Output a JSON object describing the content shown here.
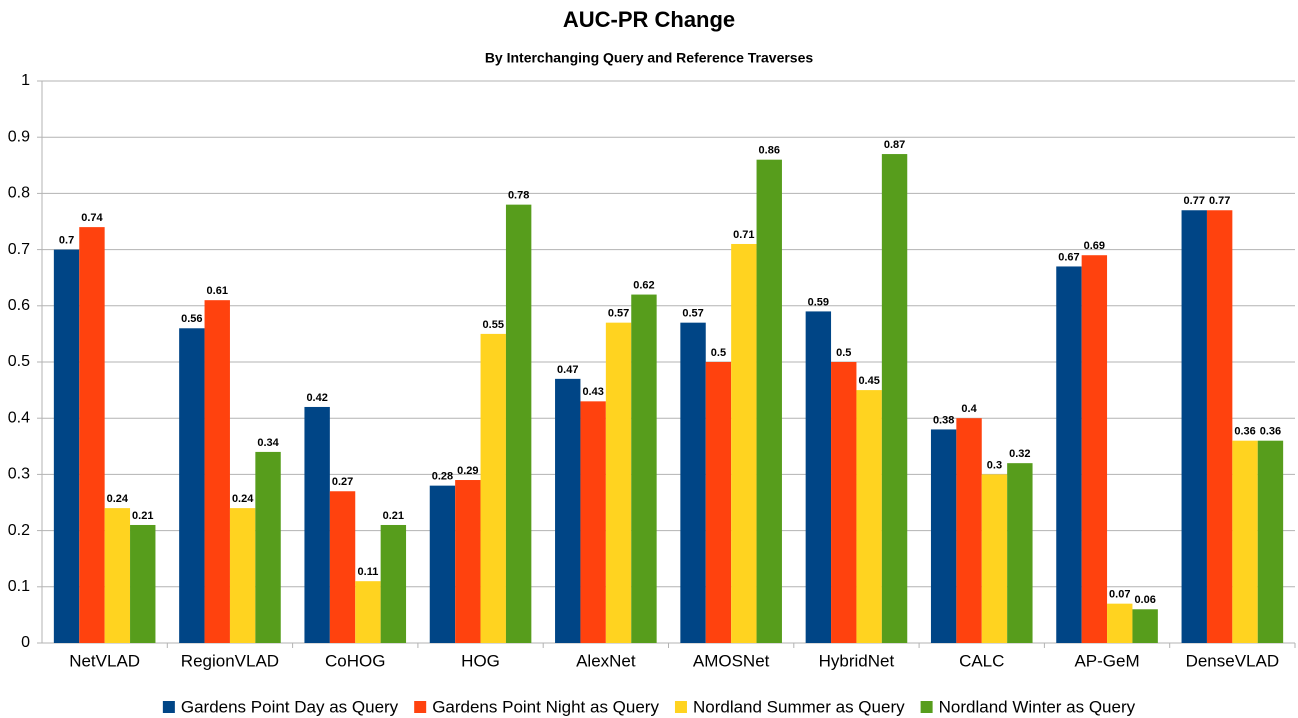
{
  "chart_data": {
    "type": "bar",
    "title": "AUC-PR Change",
    "subtitle": "By Interchanging Query and Reference Traverses",
    "categories": [
      "NetVLAD",
      "RegionVLAD",
      "CoHOG",
      "HOG",
      "AlexNet",
      "AMOSNet",
      "HybridNet",
      "CALC",
      "AP-GeM",
      "DenseVLAD"
    ],
    "series": [
      {
        "name": "Gardens Point Day as Query",
        "color": "#004586",
        "values": [
          0.7,
          0.56,
          0.42,
          0.28,
          0.47,
          0.57,
          0.59,
          0.38,
          0.67,
          0.77
        ]
      },
      {
        "name": "Gardens Point Night as Query",
        "color": "#ff420e",
        "values": [
          0.74,
          0.61,
          0.27,
          0.29,
          0.43,
          0.5,
          0.5,
          0.4,
          0.69,
          0.77
        ]
      },
      {
        "name": "Nordland Summer as Query",
        "color": "#ffd320",
        "values": [
          0.24,
          0.24,
          0.11,
          0.55,
          0.57,
          0.71,
          0.45,
          0.3,
          0.07,
          0.36
        ]
      },
      {
        "name": "Nordland Winter as Query",
        "color": "#579d1c",
        "values": [
          0.21,
          0.34,
          0.21,
          0.78,
          0.62,
          0.86,
          0.87,
          0.32,
          0.06,
          0.36
        ]
      }
    ],
    "ylim": [
      0,
      1
    ],
    "yticks": [
      0,
      0.1,
      0.2,
      0.3,
      0.4,
      0.5,
      0.6,
      0.7,
      0.8,
      0.9,
      1
    ],
    "grid": true,
    "legend": "bottom"
  }
}
